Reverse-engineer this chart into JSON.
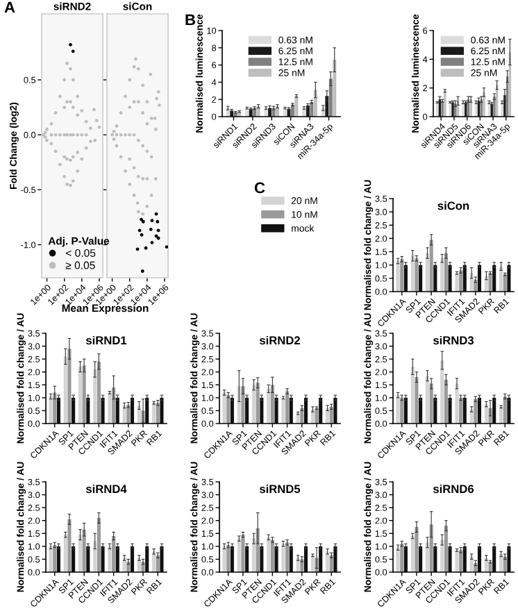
{
  "chart_data": [
    {
      "type": "scatter",
      "title": "siRND2",
      "xlabel": "Mean Expression",
      "ylabel": "Fold Change (log2)",
      "legend_title": "Adj. P-Value",
      "annotations": [
        "A"
      ],
      "log": "x",
      "marker": "circle",
      "legend": "bottom left",
      "xlim": [
        0.25,
        2500000
      ],
      "ylim": [
        -1.3,
        1.1
      ],
      "xticks": [
        {
          "value": 1,
          "label": "1e+00"
        },
        {
          "value": 100,
          "label": "1e+02"
        },
        {
          "value": 10000,
          "label": "1e+04"
        },
        {
          "value": 1000000,
          "label": "1e+06"
        }
      ],
      "yticks": [
        {
          "value": -1,
          "label": "-1.0"
        },
        {
          "value": -0.5,
          "label": "-0.5"
        },
        {
          "value": 0,
          "label": "0.0"
        },
        {
          "value": 0.5,
          "label": "0.5"
        }
      ],
      "series": [
        {
          "name": "< 0.05",
          "color": "#000000",
          "x": [
            500,
            1000
          ],
          "values": [
            0.82,
            0.76
          ]
        },
        {
          "name": "≥ 0.05",
          "color": "#bdbdbd",
          "x": [
            0.4,
            0.63,
            0.63,
            1,
            1,
            3.2,
            3.2,
            10,
            10,
            32,
            32,
            100,
            100,
            200,
            200,
            500,
            500,
            1000,
            1000,
            3200,
            3200,
            10000,
            10000,
            32000,
            32000,
            100000,
            100000,
            250000,
            500000,
            1000000,
            316000,
            3.2,
            10,
            32,
            100,
            200,
            500,
            1000,
            3200,
            10000,
            32000,
            100,
            100,
            200,
            200,
            500,
            500,
            1000,
            1000,
            3200,
            3200
          ],
          "values": [
            0,
            0.02,
            -0.02,
            0.05,
            -0.05,
            0.1,
            -0.08,
            0.2,
            -0.15,
            0.35,
            -0.27,
            0.5,
            -0.38,
            0.65,
            -0.45,
            0.6,
            -0.46,
            0.5,
            -0.42,
            0.35,
            -0.33,
            0.22,
            -0.22,
            0.12,
            -0.12,
            0.06,
            -0.06,
            0.23,
            0.13,
            0.07,
            -0.05,
            0,
            0,
            0,
            0,
            0,
            0,
            0,
            0,
            0,
            0,
            0.25,
            -0.2,
            0.3,
            -0.22,
            0.3,
            -0.23,
            0.25,
            -0.2,
            0.18,
            -0.16
          ]
        }
      ]
    },
    {
      "type": "scatter",
      "title": "siCon",
      "log": "x",
      "marker": "circle",
      "tick_labels": "x",
      "xlim": [
        0.25,
        2500000
      ],
      "ylim": [
        -1.3,
        1.1
      ],
      "xticks": [
        {
          "value": 1,
          "label": "1e+00"
        },
        {
          "value": 100,
          "label": "1e+02"
        },
        {
          "value": 10000,
          "label": "1e+04"
        },
        {
          "value": 1000000,
          "label": "1e+06"
        }
      ],
      "yticks": [
        {
          "value": -1,
          "label": null
        },
        {
          "value": -0.5,
          "label": null
        },
        {
          "value": 0,
          "label": null
        },
        {
          "value": 0.5,
          "label": null
        }
      ],
      "series": [
        {
          "color": "#000000",
          "x": [
            112000,
            37000,
            2200,
            3600,
            155000,
            1400,
            195000,
            27000,
            2400,
            112000,
            195000,
            37000,
            800,
            7200,
            1740000,
            3000
          ],
          "values": [
            -0.72,
            -0.78,
            -0.77,
            -0.79,
            -0.79,
            -0.87,
            -0.87,
            -0.86,
            -0.91,
            -0.92,
            -0.94,
            -0.98,
            -1.04,
            -1.03,
            -1.02,
            -1.24
          ]
        },
        {
          "color": "#bdbdbd",
          "x": [
            1,
            1.6,
            1.6,
            3.2,
            3.2,
            10,
            10,
            32,
            32,
            100,
            100,
            320,
            320,
            500,
            800,
            1000,
            1000,
            3200,
            3200,
            10000,
            10000,
            32000,
            32000,
            100000,
            100000,
            25000,
            200000,
            125000,
            250000,
            80000,
            3.2,
            10,
            32,
            100,
            320,
            1000,
            3200,
            10000,
            32000,
            100,
            100,
            320,
            320,
            1000,
            1000,
            3200,
            3200,
            10000,
            10000
          ],
          "values": [
            0,
            0.03,
            -0.04,
            0.08,
            -0.1,
            0.2,
            -0.2,
            0.35,
            -0.33,
            0.5,
            -0.45,
            0.62,
            -0.55,
            0.69,
            -0.62,
            0.6,
            -0.7,
            0.45,
            -0.72,
            0.3,
            -0.65,
            0.15,
            -0.55,
            0.05,
            -0.4,
            0.55,
            0.39,
            0.33,
            0.27,
            0.15,
            0,
            0,
            0,
            0,
            0,
            -0.05,
            -0.1,
            -0.15,
            -0.2,
            0.25,
            -0.22,
            0.3,
            -0.3,
            0.3,
            -0.38,
            0.2,
            -0.4,
            0.1,
            -0.4
          ]
        }
      ]
    },
    {
      "type": "bar",
      "ylabel": "Normalised luminescence",
      "annotations": [
        "B"
      ],
      "legend": "top",
      "ylim": [
        0,
        10
      ],
      "yticks": [
        0,
        2,
        4,
        6,
        8,
        10
      ],
      "categories": [
        "siRND1",
        "siRND2",
        "siRND3",
        "siCON",
        "siRNA3",
        "miR-34a-5p"
      ],
      "series": [
        {
          "name": "0.63 nM",
          "color": "#dcdcdc",
          "values": [
            1.0,
            1.0,
            1.0,
            1.0,
            1.0,
            1.0
          ],
          "errors": [
            0.2,
            0.1,
            0.15,
            0.1,
            0.15,
            0.3
          ]
        },
        {
          "name": "6.25 nM",
          "color": "#1a1a1a",
          "values": [
            0.7,
            0.9,
            1.0,
            0.9,
            1.3,
            2.4
          ],
          "errors": [
            0.15,
            0.1,
            0.25,
            0.15,
            0.2,
            0.6
          ]
        },
        {
          "name": "12.5 nM",
          "color": "#808080",
          "values": [
            0.5,
            1.0,
            1.0,
            1.4,
            1.7,
            4.4
          ],
          "errors": [
            0.1,
            0.15,
            0.2,
            0.15,
            0.2,
            0.8
          ]
        },
        {
          "name": "25 nM",
          "color": "#bebebe",
          "values": [
            0.6,
            1.2,
            1.2,
            2.4,
            3.1,
            6.6
          ],
          "errors": [
            0.1,
            0.2,
            0.2,
            0.15,
            0.9,
            1.4
          ]
        }
      ]
    },
    {
      "type": "bar",
      "ylabel": "Normalised luminescence",
      "legend": "top",
      "ylim": [
        0,
        6
      ],
      "yticks": [
        0,
        2,
        4,
        6
      ],
      "categories": [
        "siRND4",
        "siRND5",
        "siRND6",
        "siCON",
        "siRNA3",
        "miR-34a-5p"
      ],
      "series": [
        {
          "name": "0.63 nM",
          "color": "#dcdcdc",
          "values": [
            1.0,
            1.0,
            1.0,
            1.0,
            1.0,
            1.0
          ],
          "errors": [
            0.05,
            0.05,
            0.1,
            0.1,
            0.1,
            0.1
          ]
        },
        {
          "name": "6.25 nM",
          "color": "#1a1a1a",
          "values": [
            1.2,
            1.0,
            1.0,
            1.1,
            0.9,
            1.5
          ],
          "errors": [
            0.2,
            0.1,
            0.1,
            0.2,
            0.1,
            0.4
          ]
        },
        {
          "name": "12.5 nM",
          "color": "#808080",
          "values": [
            1.1,
            0.9,
            1.2,
            1.2,
            1.4,
            2.8
          ],
          "errors": [
            0.1,
            0.2,
            0.2,
            0.2,
            0.2,
            0.4
          ]
        },
        {
          "name": "25 nM",
          "color": "#bebebe",
          "values": [
            1.8,
            1.1,
            1.2,
            1.7,
            2.2,
            4.5
          ],
          "errors": [
            0.1,
            0.3,
            0.2,
            0.3,
            0.3,
            0.9
          ]
        }
      ]
    },
    {
      "type": "bar",
      "title": "siCon",
      "ylabel": "Normalised fold change / AU",
      "annotations": [
        "C"
      ],
      "legend": "left",
      "ylim": [
        0,
        3.5
      ],
      "yticks": [
        {
          "value": 0,
          "label": "0.0"
        },
        {
          "value": 0.5,
          "label": "0.5"
        },
        {
          "value": 1,
          "label": "1.0"
        },
        {
          "value": 1.5,
          "label": "1.5"
        },
        {
          "value": 2,
          "label": "2.0"
        },
        {
          "value": 2.5,
          "label": "2.5"
        },
        {
          "value": 3,
          "label": "3.0"
        },
        {
          "value": 3.5,
          "label": "3.5"
        }
      ],
      "categories": [
        "CDKN1A",
        "SP1",
        "PTEN",
        "CCND1",
        "IFIT1",
        "SMAD2",
        "PKR",
        "RB1"
      ],
      "series": [
        {
          "name": "20 nM",
          "color": "#d4d4d4",
          "values": [
            1.15,
            1.35,
            1.45,
            1.25,
            0.7,
            0.7,
            0.6,
            0.95
          ],
          "errors": [
            0.1,
            0.2,
            0.2,
            0.15,
            0.05,
            0.2,
            0.15,
            0.15
          ]
        },
        {
          "name": "10 nM",
          "color": "#9a9a9a",
          "values": [
            1.22,
            1.25,
            1.95,
            1.45,
            0.8,
            0.45,
            0.7,
            0.65
          ],
          "errors": [
            0.1,
            0.1,
            0.2,
            0.2,
            0.1,
            0.1,
            0.05,
            0.05
          ]
        },
        {
          "name": "mock",
          "color": "#111111",
          "values": [
            1,
            1,
            1,
            1,
            1,
            1,
            1,
            1
          ],
          "errors": [
            0.1,
            0.1,
            0.1,
            0.1,
            0.1,
            0.1,
            0.1,
            0.1
          ]
        }
      ]
    },
    {
      "type": "bar",
      "title": "siRND1",
      "ylabel": "Normalised fold change / AU",
      "ylim": [
        0,
        3.5
      ],
      "yticks": [
        {
          "value": 0,
          "label": "0.0"
        },
        {
          "value": 0.5,
          "label": "0.5"
        },
        {
          "value": 1,
          "label": "1.0"
        },
        {
          "value": 1.5,
          "label": "1.5"
        },
        {
          "value": 2,
          "label": "2.0"
        },
        {
          "value": 2.5,
          "label": "2.5"
        },
        {
          "value": 3,
          "label": "3.0"
        },
        {
          "value": 3.5,
          "label": "3.5"
        }
      ],
      "categories": [
        "CDKN1A",
        "SP1",
        "PTEN",
        "CCND1",
        "IFIT1",
        "SMAD2",
        "PKR",
        "RB1"
      ],
      "series": [
        {
          "color": "#d4d4d4",
          "values": [
            1.05,
            2.6,
            2.2,
            2.1,
            1.2,
            0.7,
            0.7,
            0.8
          ],
          "errors": [
            0.1,
            0.3,
            0.2,
            0.3,
            0.05,
            0.1,
            0.15,
            0.05
          ]
        },
        {
          "color": "#9a9a9a",
          "values": [
            1.2,
            2.9,
            2.25,
            2.4,
            1.4,
            0.72,
            0.5,
            0.8
          ],
          "errors": [
            0.25,
            0.4,
            0.25,
            0.3,
            0.45,
            0.1,
            0.45,
            0.1
          ]
        },
        {
          "color": "#111111",
          "values": [
            1,
            1,
            1,
            1,
            1,
            1,
            1,
            1
          ],
          "errors": [
            0.1,
            0.1,
            0.1,
            0.1,
            0.1,
            0.1,
            0.1,
            0.1
          ]
        }
      ]
    },
    {
      "type": "bar",
      "title": "siRND2",
      "ylabel": "Normalised fold change / AU",
      "ylim": [
        0,
        3.5
      ],
      "yticks": [
        {
          "value": 0,
          "label": "0.0"
        },
        {
          "value": 0.5,
          "label": "0.5"
        },
        {
          "value": 1,
          "label": "1.0"
        },
        {
          "value": 1.5,
          "label": "1.5"
        },
        {
          "value": 2,
          "label": "2.0"
        },
        {
          "value": 2.5,
          "label": "2.5"
        },
        {
          "value": 3,
          "label": "3.0"
        },
        {
          "value": 3.5,
          "label": "3.5"
        }
      ],
      "categories": [
        "CDKN1A",
        "SP1",
        "PTEN",
        "CCND1",
        "IFIT1",
        "SMAD2",
        "PKR",
        "RB1"
      ],
      "series": [
        {
          "color": "#d4d4d4",
          "values": [
            1.2,
            1.45,
            1.5,
            1.35,
            1.0,
            0.4,
            0.55,
            0.6
          ],
          "errors": [
            0.1,
            0.6,
            0.2,
            0.15,
            0.05,
            0.05,
            0.1,
            0.1
          ]
        },
        {
          "color": "#9a9a9a",
          "values": [
            1.1,
            1.45,
            1.58,
            1.5,
            1.25,
            0.6,
            0.6,
            0.65
          ],
          "errors": [
            0.1,
            0.3,
            0.2,
            0.3,
            0.1,
            0.1,
            0.05,
            0.1
          ]
        },
        {
          "color": "#111111",
          "values": [
            1,
            1,
            1,
            1,
            1,
            1,
            1,
            1
          ],
          "errors": [
            0.1,
            0.1,
            0.1,
            0.1,
            0.1,
            0.1,
            0.1,
            0.1
          ]
        }
      ]
    },
    {
      "type": "bar",
      "title": "siRND3",
      "ylabel": "Normalised fold change / AU",
      "ylim": [
        0,
        3.5
      ],
      "yticks": [
        {
          "value": 0,
          "label": "0.0"
        },
        {
          "value": 0.5,
          "label": "0.5"
        },
        {
          "value": 1,
          "label": "1.0"
        },
        {
          "value": 1.5,
          "label": "1.5"
        },
        {
          "value": 2,
          "label": "2.0"
        },
        {
          "value": 2.5,
          "label": "2.5"
        },
        {
          "value": 3,
          "label": "3.0"
        },
        {
          "value": 3.5,
          "label": "3.5"
        }
      ],
      "categories": [
        "CDKN1A",
        "SP1",
        "PTEN",
        "CCND1",
        "IFIT1",
        "SMAD2",
        "PKR",
        "RB1"
      ],
      "series": [
        {
          "color": "#d4d4d4",
          "values": [
            1.1,
            2.2,
            1.85,
            2.45,
            1.55,
            0.55,
            0.75,
            0.65
          ],
          "errors": [
            0.1,
            0.3,
            0.2,
            0.35,
            0.2,
            0.1,
            0.1,
            0.05
          ]
        },
        {
          "color": "#9a9a9a",
          "values": [
            1.0,
            1.8,
            1.55,
            1.7,
            1.0,
            0.95,
            0.6,
            1.05
          ],
          "errors": [
            0.1,
            0.2,
            0.2,
            0.2,
            0.1,
            0.1,
            0.3,
            0.1
          ]
        },
        {
          "color": "#111111",
          "values": [
            1,
            1,
            1,
            1,
            1,
            1,
            1,
            1
          ],
          "errors": [
            0.1,
            0.1,
            0.1,
            0.1,
            0.1,
            0.1,
            0.1,
            0.1
          ]
        }
      ]
    },
    {
      "type": "bar",
      "title": "siRND4",
      "ylabel": "Normalised fold change / AU",
      "ylim": [
        0,
        3.5
      ],
      "yticks": [
        {
          "value": 0,
          "label": "0.0"
        },
        {
          "value": 0.5,
          "label": "0.5"
        },
        {
          "value": 1,
          "label": "1.0"
        },
        {
          "value": 1.5,
          "label": "1.5"
        },
        {
          "value": 2,
          "label": "2.0"
        },
        {
          "value": 2.5,
          "label": "2.5"
        },
        {
          "value": 3,
          "label": "3.0"
        },
        {
          "value": 3.5,
          "label": "3.5"
        }
      ],
      "categories": [
        "CDKN1A",
        "SP1",
        "PTEN",
        "CCND1",
        "IFIT1",
        "SMAD2",
        "PKR",
        "RB1"
      ],
      "series": [
        {
          "color": "#d4d4d4",
          "values": [
            1.0,
            1.45,
            1.45,
            1.2,
            1.0,
            0.55,
            0.55,
            0.8
          ],
          "errors": [
            0.1,
            0.1,
            0.2,
            0.3,
            0.1,
            0.1,
            0.1,
            0.1
          ]
        },
        {
          "color": "#9a9a9a",
          "values": [
            1.05,
            2.05,
            1.65,
            2.1,
            1.4,
            0.4,
            0.4,
            0.65
          ],
          "errors": [
            0.1,
            0.2,
            0.25,
            0.2,
            0.15,
            0.1,
            0.1,
            0.1
          ]
        },
        {
          "color": "#111111",
          "values": [
            1,
            1,
            1,
            1,
            1,
            1,
            1,
            1
          ],
          "errors": [
            0.1,
            0.1,
            0.1,
            0.1,
            0.1,
            0.1,
            0.1,
            0.1
          ]
        }
      ]
    },
    {
      "type": "bar",
      "title": "siRND5",
      "ylabel": "Normalised fold change / AU",
      "ylim": [
        0,
        3.5
      ],
      "yticks": [
        {
          "value": 0,
          "label": "0.0"
        },
        {
          "value": 0.5,
          "label": "0.5"
        },
        {
          "value": 1,
          "label": "1.0"
        },
        {
          "value": 1.5,
          "label": "1.5"
        },
        {
          "value": 2,
          "label": "2.0"
        },
        {
          "value": 2.5,
          "label": "2.5"
        },
        {
          "value": 3,
          "label": "3.0"
        },
        {
          "value": 3.5,
          "label": "3.5"
        }
      ],
      "categories": [
        "CDKN1A",
        "SP1",
        "PTEN",
        "CCND1",
        "IFIT1",
        "SMAD2",
        "PKR",
        "RB1"
      ],
      "series": [
        {
          "color": "#d4d4d4",
          "values": [
            1.0,
            1.3,
            1.3,
            1.35,
            1.1,
            0.55,
            0.65,
            0.8
          ],
          "errors": [
            0.1,
            0.1,
            0.2,
            0.1,
            0.1,
            0.1,
            0.05,
            0.1
          ]
        },
        {
          "color": "#9a9a9a",
          "values": [
            1.05,
            1.45,
            1.7,
            1.25,
            1.15,
            0.5,
            0.55,
            0.65
          ],
          "errors": [
            0.1,
            0.1,
            0.6,
            0.1,
            0.1,
            0.1,
            0.4,
            0.1
          ]
        },
        {
          "color": "#111111",
          "values": [
            1,
            1,
            1,
            1,
            1,
            1,
            1,
            1
          ],
          "errors": [
            0.1,
            0.1,
            0.1,
            0.1,
            0.1,
            0.1,
            0.1,
            0.1
          ]
        }
      ]
    },
    {
      "type": "bar",
      "title": "siRND6",
      "ylabel": "Normalised fold change / AU",
      "ylim": [
        0,
        3.5
      ],
      "yticks": [
        {
          "value": 0,
          "label": "0.0"
        },
        {
          "value": 0.5,
          "label": "0.5"
        },
        {
          "value": 1,
          "label": "1.0"
        },
        {
          "value": 1.5,
          "label": "1.5"
        },
        {
          "value": 2,
          "label": "2.0"
        },
        {
          "value": 2.5,
          "label": "2.5"
        },
        {
          "value": 3,
          "label": "3.0"
        },
        {
          "value": 3.5,
          "label": "3.5"
        }
      ],
      "categories": [
        "CDKN1A",
        "SP1",
        "PTEN",
        "CCND1",
        "IFIT1",
        "SMAD2",
        "PKR",
        "RB1"
      ],
      "series": [
        {
          "color": "#d4d4d4",
          "values": [
            0.95,
            1.4,
            1.15,
            1.25,
            0.85,
            0.6,
            0.55,
            0.7
          ],
          "errors": [
            0.1,
            0.1,
            0.2,
            0.2,
            0.05,
            0.1,
            0.1,
            0.1
          ]
        },
        {
          "color": "#9a9a9a",
          "values": [
            1.1,
            1.75,
            1.85,
            1.8,
            0.85,
            0.35,
            0.4,
            0.6
          ],
          "errors": [
            0.1,
            0.2,
            0.5,
            0.2,
            0.1,
            0.1,
            0.05,
            0.1
          ]
        },
        {
          "color": "#111111",
          "values": [
            1,
            1,
            1,
            1,
            1,
            1,
            1,
            1
          ],
          "errors": [
            0.1,
            0.1,
            0.1,
            0.1,
            0.1,
            0.1,
            0.1,
            0.1
          ]
        }
      ]
    }
  ]
}
